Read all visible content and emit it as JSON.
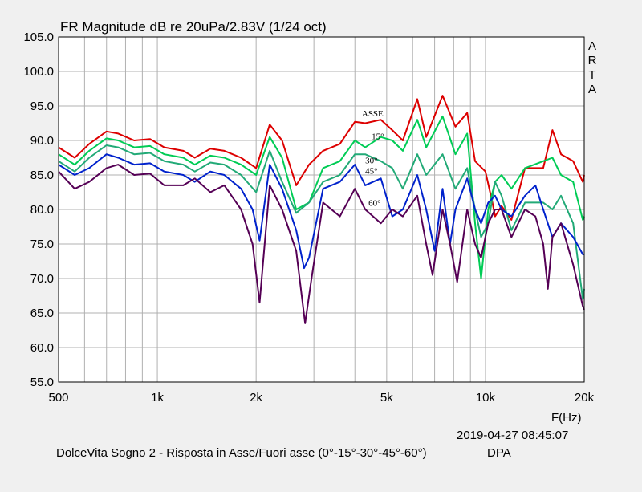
{
  "chart_data": {
    "type": "line",
    "title": "FR Magnitude dB re 20uPa/2.83V (1/24 oct)",
    "xlabel": "F(Hz)",
    "x_scale": "log",
    "xlim": [
      500,
      20000
    ],
    "ylim": [
      55,
      105
    ],
    "y_ticks": [
      "105.0",
      "100.0",
      "95.0",
      "90.0",
      "85.0",
      "80.0",
      "75.0",
      "70.0",
      "65.0",
      "60.0",
      "55.0"
    ],
    "x_ticks": [
      {
        "value": 500,
        "label": "500"
      },
      {
        "value": 1000,
        "label": "1k"
      },
      {
        "value": 2000,
        "label": "2k"
      },
      {
        "value": 5000,
        "label": "5k"
      },
      {
        "value": 10000,
        "label": "10k"
      },
      {
        "value": 20000,
        "label": "20k"
      }
    ],
    "side_label": [
      "A",
      "R",
      "T",
      "A"
    ],
    "grid": true,
    "series": [
      {
        "name": "ASSE",
        "color": "#dd0000",
        "points": [
          [
            500,
            89
          ],
          [
            560,
            87.5
          ],
          [
            620,
            89.5
          ],
          [
            700,
            91.3
          ],
          [
            760,
            91
          ],
          [
            850,
            90
          ],
          [
            950,
            90.2
          ],
          [
            1050,
            89
          ],
          [
            1200,
            88.5
          ],
          [
            1300,
            87.5
          ],
          [
            1450,
            88.8
          ],
          [
            1600,
            88.5
          ],
          [
            1800,
            87.5
          ],
          [
            2000,
            86
          ],
          [
            2200,
            92.3
          ],
          [
            2400,
            90
          ],
          [
            2650,
            83.5
          ],
          [
            2900,
            86.5
          ],
          [
            3200,
            88.5
          ],
          [
            3600,
            89.5
          ],
          [
            4000,
            92.7
          ],
          [
            4300,
            92.5
          ],
          [
            4800,
            93
          ],
          [
            5200,
            91.5
          ],
          [
            5600,
            90
          ],
          [
            6200,
            96
          ],
          [
            6600,
            90.5
          ],
          [
            7400,
            96.5
          ],
          [
            8100,
            92
          ],
          [
            8800,
            94
          ],
          [
            9300,
            87
          ],
          [
            10000,
            85.5
          ],
          [
            10500,
            81
          ],
          [
            10700,
            79
          ],
          [
            11200,
            80.5
          ],
          [
            12000,
            78.5
          ],
          [
            13200,
            86
          ],
          [
            15000,
            86
          ],
          [
            16000,
            91.5
          ],
          [
            17000,
            88
          ],
          [
            18500,
            87
          ],
          [
            19800,
            84
          ],
          [
            20000,
            85
          ]
        ]
      },
      {
        "name": "15°",
        "color": "#00cc55",
        "points": [
          [
            500,
            88
          ],
          [
            560,
            86.5
          ],
          [
            620,
            88.5
          ],
          [
            700,
            90.3
          ],
          [
            760,
            90
          ],
          [
            850,
            89
          ],
          [
            950,
            89.2
          ],
          [
            1050,
            88
          ],
          [
            1200,
            87.5
          ],
          [
            1300,
            86.5
          ],
          [
            1450,
            87.8
          ],
          [
            1600,
            87.5
          ],
          [
            1800,
            86.5
          ],
          [
            2000,
            85
          ],
          [
            2200,
            90.5
          ],
          [
            2400,
            87.5
          ],
          [
            2650,
            80
          ],
          [
            2900,
            81
          ],
          [
            3200,
            86
          ],
          [
            3600,
            87
          ],
          [
            4000,
            90
          ],
          [
            4300,
            89
          ],
          [
            4800,
            90.5
          ],
          [
            5200,
            90
          ],
          [
            5600,
            88.5
          ],
          [
            6200,
            93
          ],
          [
            6600,
            89
          ],
          [
            7400,
            93.5
          ],
          [
            8100,
            88
          ],
          [
            8800,
            91
          ],
          [
            9300,
            78
          ],
          [
            9700,
            70
          ],
          [
            10200,
            80
          ],
          [
            10700,
            84
          ],
          [
            11200,
            85
          ],
          [
            12000,
            83
          ],
          [
            13200,
            86
          ],
          [
            15000,
            87
          ],
          [
            16000,
            87.5
          ],
          [
            17000,
            85
          ],
          [
            18500,
            84
          ],
          [
            19800,
            78.5
          ],
          [
            20000,
            79
          ]
        ]
      },
      {
        "name": "30°",
        "color": "#22aa77",
        "points": [
          [
            500,
            87
          ],
          [
            560,
            85.5
          ],
          [
            620,
            87.5
          ],
          [
            700,
            89.3
          ],
          [
            760,
            89
          ],
          [
            850,
            88
          ],
          [
            950,
            88.2
          ],
          [
            1050,
            87
          ],
          [
            1200,
            86.5
          ],
          [
            1300,
            85.5
          ],
          [
            1450,
            86.8
          ],
          [
            1600,
            86.5
          ],
          [
            1800,
            85
          ],
          [
            2000,
            82.5
          ],
          [
            2200,
            88.5
          ],
          [
            2400,
            84
          ],
          [
            2650,
            79.5
          ],
          [
            2900,
            81
          ],
          [
            3200,
            84
          ],
          [
            3600,
            85
          ],
          [
            4000,
            88
          ],
          [
            4300,
            88
          ],
          [
            4800,
            87
          ],
          [
            5200,
            86
          ],
          [
            5600,
            83
          ],
          [
            6200,
            88
          ],
          [
            6600,
            85
          ],
          [
            7400,
            88
          ],
          [
            8100,
            83
          ],
          [
            8800,
            86
          ],
          [
            9300,
            80
          ],
          [
            9700,
            76
          ],
          [
            10200,
            78
          ],
          [
            10700,
            84
          ],
          [
            11200,
            82
          ],
          [
            12000,
            77
          ],
          [
            13200,
            81
          ],
          [
            15000,
            81
          ],
          [
            16000,
            80
          ],
          [
            17000,
            82
          ],
          [
            18500,
            78
          ],
          [
            19800,
            67
          ],
          [
            20000,
            68.5
          ]
        ]
      },
      {
        "name": "45°",
        "color": "#0022cc",
        "points": [
          [
            500,
            86.5
          ],
          [
            560,
            85
          ],
          [
            620,
            86
          ],
          [
            700,
            88
          ],
          [
            760,
            87.5
          ],
          [
            850,
            86.5
          ],
          [
            950,
            86.7
          ],
          [
            1050,
            85.5
          ],
          [
            1200,
            85
          ],
          [
            1300,
            84
          ],
          [
            1450,
            85.5
          ],
          [
            1600,
            85
          ],
          [
            1800,
            83
          ],
          [
            1950,
            80
          ],
          [
            2050,
            75.5
          ],
          [
            2200,
            86.5
          ],
          [
            2400,
            83
          ],
          [
            2650,
            77
          ],
          [
            2800,
            71.5
          ],
          [
            2900,
            73
          ],
          [
            3200,
            83
          ],
          [
            3600,
            84
          ],
          [
            4000,
            86.5
          ],
          [
            4300,
            83.5
          ],
          [
            4800,
            84.5
          ],
          [
            5200,
            79
          ],
          [
            5600,
            80
          ],
          [
            6200,
            85
          ],
          [
            6600,
            80
          ],
          [
            7000,
            74
          ],
          [
            7400,
            83
          ],
          [
            7800,
            75
          ],
          [
            8100,
            80
          ],
          [
            8800,
            84.5
          ],
          [
            9300,
            80
          ],
          [
            9700,
            78
          ],
          [
            10200,
            81
          ],
          [
            10700,
            82
          ],
          [
            11200,
            80
          ],
          [
            12000,
            79
          ],
          [
            13200,
            82
          ],
          [
            14200,
            83.5
          ],
          [
            15000,
            80
          ],
          [
            16000,
            76
          ],
          [
            17000,
            78
          ],
          [
            18500,
            76
          ],
          [
            19800,
            73.5
          ],
          [
            20000,
            73.5
          ]
        ]
      },
      {
        "name": "60°",
        "color": "#550055",
        "points": [
          [
            500,
            85.5
          ],
          [
            560,
            83
          ],
          [
            620,
            84
          ],
          [
            700,
            86
          ],
          [
            760,
            86.5
          ],
          [
            850,
            85
          ],
          [
            950,
            85.2
          ],
          [
            1050,
            83.5
          ],
          [
            1200,
            83.5
          ],
          [
            1300,
            84.5
          ],
          [
            1450,
            82.5
          ],
          [
            1600,
            83.5
          ],
          [
            1800,
            80
          ],
          [
            1950,
            75
          ],
          [
            2050,
            66.5
          ],
          [
            2200,
            83.5
          ],
          [
            2400,
            80
          ],
          [
            2650,
            74
          ],
          [
            2820,
            63.5
          ],
          [
            2950,
            70
          ],
          [
            3200,
            81
          ],
          [
            3600,
            79
          ],
          [
            4000,
            83
          ],
          [
            4300,
            80
          ],
          [
            4800,
            78
          ],
          [
            5200,
            80
          ],
          [
            5600,
            79
          ],
          [
            6200,
            82
          ],
          [
            6600,
            75
          ],
          [
            6900,
            70.5
          ],
          [
            7400,
            80
          ],
          [
            7800,
            75
          ],
          [
            8200,
            69.5
          ],
          [
            8800,
            80
          ],
          [
            9300,
            75
          ],
          [
            9700,
            73
          ],
          [
            10200,
            78
          ],
          [
            10700,
            80
          ],
          [
            11200,
            80
          ],
          [
            12000,
            76
          ],
          [
            13200,
            80
          ],
          [
            14200,
            79
          ],
          [
            15000,
            75
          ],
          [
            15500,
            68.5
          ],
          [
            16000,
            76
          ],
          [
            17000,
            78
          ],
          [
            18500,
            72
          ],
          [
            19800,
            66
          ],
          [
            20000,
            65.5
          ]
        ]
      }
    ],
    "annotations": [
      {
        "text": "ASSE",
        "x": 4200,
        "y": 93.5
      },
      {
        "text": "15°",
        "x": 4500,
        "y": 90.2
      },
      {
        "text": "30°",
        "x": 4300,
        "y": 86.7
      },
      {
        "text": "45°",
        "x": 4300,
        "y": 85.2
      },
      {
        "text": "60°",
        "x": 4400,
        "y": 80.5
      }
    ]
  },
  "footer": {
    "timestamp": "2019-04-27   08:45:07",
    "caption": "DolceVita Sogno 2 - Risposta in Asse/Fuori asse (0°-15°-30°-45°-60°)",
    "right": "DPA"
  }
}
